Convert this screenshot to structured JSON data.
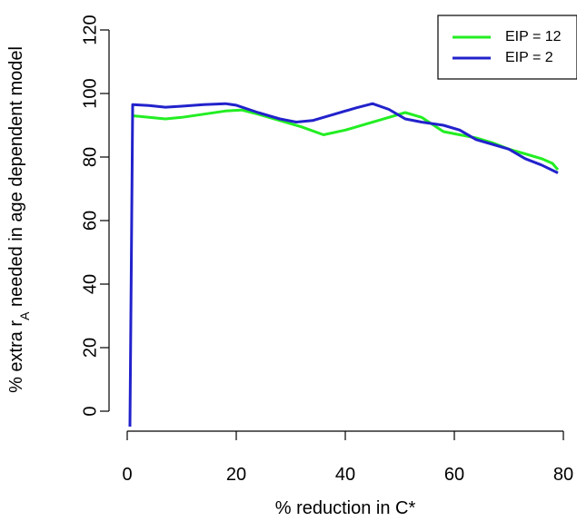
{
  "chart_data": {
    "type": "line",
    "xlabel": "% reduction in C*",
    "ylabel": {
      "prefix": "% extra r",
      "subscript": "A",
      "suffix": " needed in age dependent model"
    },
    "xlim": [
      0,
      80
    ],
    "ylim": [
      0,
      120
    ],
    "x_ticks": [
      0,
      20,
      40,
      60,
      80
    ],
    "y_ticks": [
      0,
      20,
      40,
      60,
      80,
      100,
      120
    ],
    "grid": false,
    "legend_position": "top-right",
    "series": [
      {
        "name": "EIP = 12",
        "color": "#22ee22",
        "points": [
          [
            1,
            93
          ],
          [
            4,
            92.5
          ],
          [
            7,
            92
          ],
          [
            10,
            92.5
          ],
          [
            14,
            93.5
          ],
          [
            18,
            94.5
          ],
          [
            21,
            94.8
          ],
          [
            24,
            93.5
          ],
          [
            28,
            91.5
          ],
          [
            32,
            89.5
          ],
          [
            36,
            87
          ],
          [
            40,
            88.5
          ],
          [
            44,
            90.5
          ],
          [
            48,
            92.5
          ],
          [
            51,
            94
          ],
          [
            54,
            92.5
          ],
          [
            58,
            88
          ],
          [
            61,
            87
          ],
          [
            64,
            86
          ],
          [
            67,
            84.5
          ],
          [
            70,
            82.5
          ],
          [
            73,
            81
          ],
          [
            76,
            79.5
          ],
          [
            78,
            78
          ],
          [
            79,
            76
          ]
        ]
      },
      {
        "name": "EIP = 2",
        "color": "#2222cc",
        "points": [
          [
            0.5,
            -5
          ],
          [
            1,
            96.5
          ],
          [
            4,
            96.2
          ],
          [
            7,
            95.7
          ],
          [
            10,
            96
          ],
          [
            14,
            96.5
          ],
          [
            18,
            96.8
          ],
          [
            20,
            96.3
          ],
          [
            24,
            94
          ],
          [
            28,
            92
          ],
          [
            31,
            91
          ],
          [
            34,
            91.5
          ],
          [
            38,
            93.5
          ],
          [
            42,
            95.5
          ],
          [
            45,
            96.8
          ],
          [
            48,
            95
          ],
          [
            51,
            92
          ],
          [
            54,
            91
          ],
          [
            58,
            90
          ],
          [
            61,
            88.5
          ],
          [
            64,
            85.5
          ],
          [
            67,
            84
          ],
          [
            70,
            82.5
          ],
          [
            73,
            79.5
          ],
          [
            76,
            77.5
          ],
          [
            79,
            75
          ]
        ]
      }
    ]
  }
}
